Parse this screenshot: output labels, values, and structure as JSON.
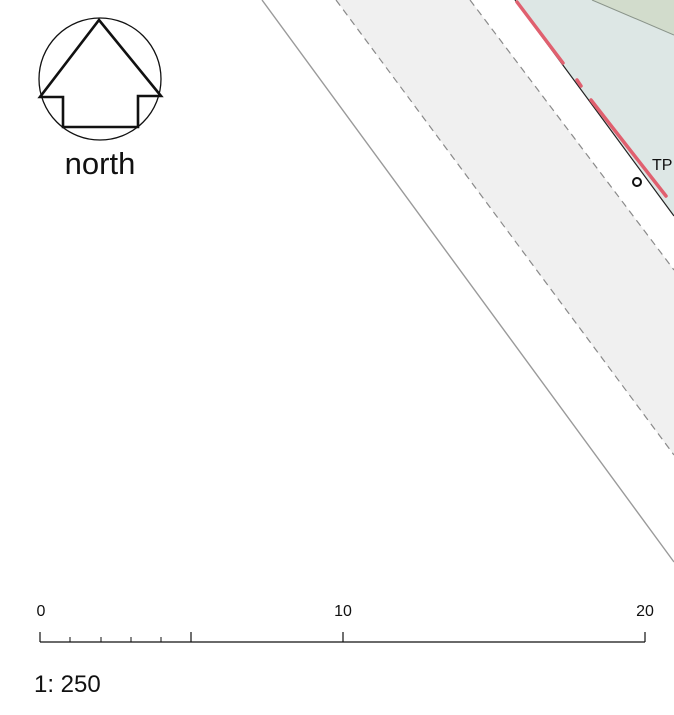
{
  "north_arrow": {
    "label": "north",
    "icon": "north-arrow-icon"
  },
  "scale_bar": {
    "ticks": [
      {
        "value": 0,
        "label": "0"
      },
      {
        "value": 10,
        "label": "10"
      },
      {
        "value": 20,
        "label": "20"
      }
    ],
    "ratio_label": "1: 250"
  },
  "map_features": {
    "survey_point_label": "TP",
    "colors": {
      "plot_fill": "#dde7e5",
      "plot_edge_fill": "#d6e0d0",
      "verge_fill": "#f0f0f0",
      "boundary_highlight": "#e0606f",
      "road_edge": "#9a9a9a",
      "dashed_line": "#8a8a8a"
    }
  }
}
